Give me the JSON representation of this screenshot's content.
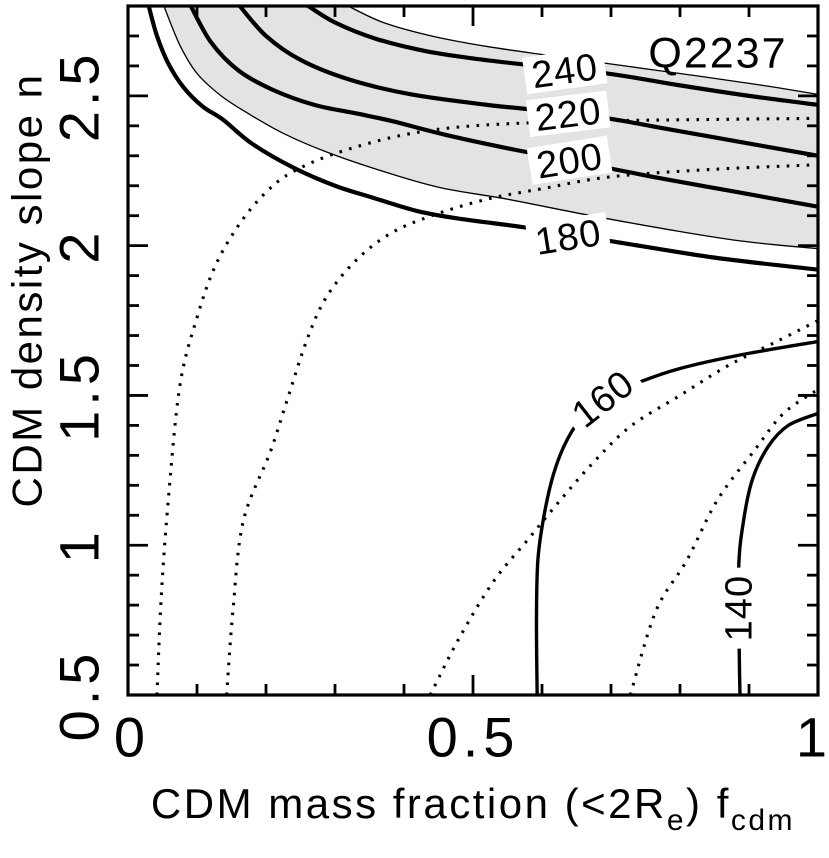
{
  "chart_data": {
    "type": "contour",
    "title": "Q2237",
    "annotation": {
      "text": "Q2237",
      "x": 0.855,
      "y": 2.645
    },
    "xlabel": "CDM mass fraction (<2R_e) f_cdm",
    "xlabel_parts": [
      {
        "text": "CDM mass fraction (<2R",
        "sub": false
      },
      {
        "text": "e",
        "sub": true
      },
      {
        "text": ") f",
        "sub": false
      },
      {
        "text": "cdm",
        "sub": true
      }
    ],
    "ylabel": "CDM density slope n",
    "xlim": [
      0,
      1
    ],
    "ylim": [
      0.5,
      2.8
    ],
    "grid": false,
    "x_tick_labels": [
      {
        "value": 0,
        "label": "0"
      },
      {
        "value": 0.5,
        "label": "0.5"
      },
      {
        "value": 1,
        "label": "1"
      }
    ],
    "y_tick_labels": [
      {
        "value": 0.5,
        "label": "0.5"
      },
      {
        "value": 1,
        "label": "1"
      },
      {
        "value": 1.5,
        "label": "1.5"
      },
      {
        "value": 2,
        "label": "2"
      },
      {
        "value": 2.5,
        "label": "2.5"
      }
    ],
    "x_major_ticks": [
      0.5
    ],
    "x_minor_ticks": [
      0.1,
      0.2,
      0.3,
      0.4,
      0.6,
      0.7,
      0.8,
      0.9
    ],
    "y_major_ticks": [
      1,
      1.5,
      2,
      2.5
    ],
    "y_minor_ticks": [
      0.6,
      0.7,
      0.8,
      0.9,
      1.1,
      1.2,
      1.3,
      1.4,
      1.6,
      1.7,
      1.8,
      1.9,
      2.1,
      2.2,
      2.3,
      2.4,
      2.6,
      2.7
    ],
    "contour_levels": [
      140,
      160,
      180,
      200,
      220,
      240
    ],
    "colors": {
      "line": "#000000",
      "band": "#e3e3e3",
      "background": "#ffffff"
    },
    "shaded_band": {
      "color": "#e3e3e3",
      "upper": [
        [
          0.319,
          2.8
        ],
        [
          0.37,
          2.745
        ],
        [
          0.44,
          2.7
        ],
        [
          0.52,
          2.665
        ],
        [
          0.61,
          2.635
        ],
        [
          0.72,
          2.6
        ],
        [
          0.83,
          2.565
        ],
        [
          0.92,
          2.535
        ],
        [
          1.0,
          2.505
        ]
      ],
      "lower": [
        [
          0.052,
          2.8
        ],
        [
          0.075,
          2.67
        ],
        [
          0.1,
          2.575
        ],
        [
          0.135,
          2.5
        ],
        [
          0.175,
          2.44
        ],
        [
          0.225,
          2.375
        ],
        [
          0.285,
          2.315
        ],
        [
          0.36,
          2.255
        ],
        [
          0.45,
          2.195
        ],
        [
          0.55,
          2.155
        ],
        [
          0.66,
          2.105
        ],
        [
          0.78,
          2.055
        ],
        [
          0.89,
          2.015
        ],
        [
          1.0,
          1.99
        ]
      ]
    },
    "solid_contours": [
      {
        "level": 240,
        "label": {
          "text": "240",
          "x": 0.633,
          "y": 2.585,
          "rotate": -8
        },
        "points": [
          [
            0.261,
            2.8
          ],
          [
            0.3,
            2.745
          ],
          [
            0.36,
            2.69
          ],
          [
            0.43,
            2.65
          ],
          [
            0.5,
            2.625
          ],
          [
            0.573,
            2.605
          ],
          [
            0.694,
            2.575
          ],
          [
            0.8,
            2.535
          ],
          [
            0.9,
            2.5
          ],
          [
            1.0,
            2.47
          ]
        ]
      },
      {
        "level": 220,
        "label": {
          "text": "220",
          "x": 0.638,
          "y": 2.44,
          "rotate": -7
        },
        "points": [
          [
            0.162,
            2.8
          ],
          [
            0.2,
            2.7
          ],
          [
            0.25,
            2.62
          ],
          [
            0.32,
            2.555
          ],
          [
            0.41,
            2.505
          ],
          [
            0.52,
            2.47
          ],
          [
            0.583,
            2.455
          ],
          [
            0.694,
            2.425
          ],
          [
            0.78,
            2.39
          ],
          [
            0.89,
            2.345
          ],
          [
            1.0,
            2.3
          ]
        ]
      },
      {
        "level": 200,
        "label": {
          "text": "200",
          "x": 0.64,
          "y": 2.285,
          "rotate": -9
        },
        "points": [
          [
            0.091,
            2.8
          ],
          [
            0.12,
            2.68
          ],
          [
            0.16,
            2.585
          ],
          [
            0.21,
            2.52
          ],
          [
            0.27,
            2.47
          ],
          [
            0.334,
            2.44
          ],
          [
            0.384,
            2.415
          ],
          [
            0.46,
            2.37
          ],
          [
            0.55,
            2.325
          ],
          [
            0.64,
            2.285
          ],
          [
            0.76,
            2.23
          ],
          [
            0.88,
            2.18
          ],
          [
            1.0,
            2.13
          ]
        ]
      },
      {
        "level": 180,
        "label": {
          "text": "180",
          "x": 0.638,
          "y": 2.03,
          "rotate": -9
        },
        "points": [
          [
            0.03,
            2.8
          ],
          [
            0.042,
            2.7
          ],
          [
            0.058,
            2.61
          ],
          [
            0.08,
            2.53
          ],
          [
            0.108,
            2.465
          ],
          [
            0.138,
            2.42
          ],
          [
            0.18,
            2.34
          ],
          [
            0.24,
            2.26
          ],
          [
            0.3,
            2.2
          ],
          [
            0.355,
            2.16
          ],
          [
            0.42,
            2.115
          ],
          [
            0.48,
            2.09
          ],
          [
            0.578,
            2.06
          ],
          [
            0.64,
            2.035
          ],
          [
            0.7,
            2.015
          ],
          [
            0.85,
            1.96
          ],
          [
            1.0,
            1.92
          ]
        ]
      },
      {
        "level": 160,
        "label": {
          "text": "160",
          "x": 0.688,
          "y": 1.49,
          "rotate": -38
        },
        "points": [
          [
            0.593,
            0.5
          ],
          [
            0.592,
            0.75
          ],
          [
            0.594,
            0.95
          ],
          [
            0.603,
            1.1
          ],
          [
            0.617,
            1.24
          ],
          [
            0.636,
            1.35
          ],
          [
            0.66,
            1.43
          ],
          [
            0.7,
            1.5
          ],
          [
            0.742,
            1.545
          ],
          [
            0.8,
            1.59
          ],
          [
            0.887,
            1.635
          ],
          [
            1.0,
            1.68
          ]
        ]
      },
      {
        "level": 140,
        "label": {
          "text": "140",
          "x": 0.884,
          "y": 0.79,
          "rotate": -90
        },
        "points": [
          [
            0.887,
            0.5
          ],
          [
            0.886,
            0.62
          ],
          [
            0.885,
            0.92
          ],
          [
            0.892,
            1.08
          ],
          [
            0.905,
            1.22
          ],
          [
            0.928,
            1.33
          ],
          [
            0.957,
            1.4
          ],
          [
            1.0,
            1.44
          ]
        ]
      }
    ],
    "dotted_contours": [
      {
        "name": "dotted-1",
        "points": [
          [
            0.042,
            0.5
          ],
          [
            0.048,
            0.82
          ],
          [
            0.058,
            1.14
          ],
          [
            0.075,
            1.53
          ],
          [
            0.1,
            1.76
          ],
          [
            0.128,
            1.94
          ],
          [
            0.167,
            2.09
          ],
          [
            0.21,
            2.2
          ],
          [
            0.25,
            2.26
          ],
          [
            0.31,
            2.315
          ],
          [
            0.4,
            2.37
          ],
          [
            0.5,
            2.4
          ],
          [
            0.65,
            2.415
          ],
          [
            0.8,
            2.42
          ],
          [
            1.0,
            2.425
          ]
        ]
      },
      {
        "name": "dotted-2",
        "points": [
          [
            0.143,
            0.5
          ],
          [
            0.152,
            0.78
          ],
          [
            0.167,
            1.08
          ],
          [
            0.206,
            1.31
          ],
          [
            0.23,
            1.48
          ],
          [
            0.26,
            1.69
          ],
          [
            0.288,
            1.83
          ],
          [
            0.33,
            1.95
          ],
          [
            0.38,
            2.04
          ],
          [
            0.44,
            2.1
          ],
          [
            0.52,
            2.155
          ],
          [
            0.6,
            2.19
          ],
          [
            0.7,
            2.23
          ],
          [
            0.85,
            2.255
          ],
          [
            1.0,
            2.27
          ]
        ]
      },
      {
        "name": "dotted-3",
        "points": [
          [
            0.438,
            0.5
          ],
          [
            0.48,
            0.69
          ],
          [
            0.53,
            0.88
          ],
          [
            0.58,
            1.02
          ],
          [
            0.63,
            1.16
          ],
          [
            0.68,
            1.29
          ],
          [
            0.73,
            1.4
          ],
          [
            0.8,
            1.5
          ],
          [
            0.87,
            1.6
          ],
          [
            0.94,
            1.68
          ],
          [
            1.0,
            1.75
          ]
        ]
      },
      {
        "name": "dotted-4",
        "points": [
          [
            0.728,
            0.5
          ],
          [
            0.765,
            0.78
          ],
          [
            0.81,
            0.95
          ],
          [
            0.854,
            1.15
          ],
          [
            0.909,
            1.32
          ],
          [
            0.95,
            1.44
          ],
          [
            1.0,
            1.52
          ]
        ]
      }
    ]
  }
}
